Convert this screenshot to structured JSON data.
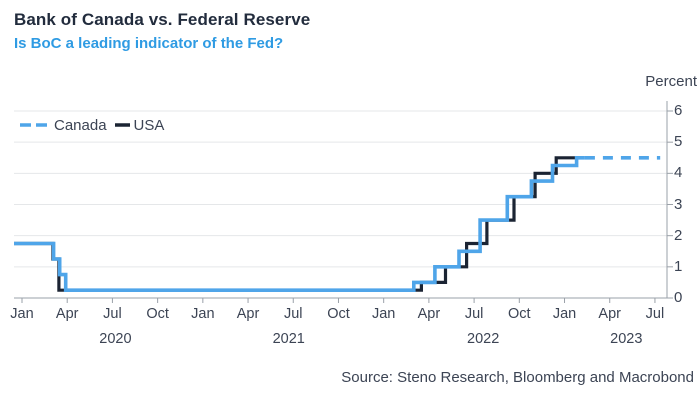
{
  "header": {
    "title": "Bank of Canada vs. Federal Reserve",
    "subtitle": "Is BoC a leading indicator of the Fed?"
  },
  "source": {
    "text": "Source: Steno Research, Bloomberg and Macrobond"
  },
  "colors": {
    "title": "#222C3D",
    "subtitle": "#2F9BE3",
    "text": "#3C4454",
    "grid": "#E5E7E9",
    "axis": "#9AA0A8",
    "canada": "#4FA5E9",
    "usa": "#1B2433"
  },
  "chart_data": {
    "type": "line",
    "style": "step",
    "title": "Bank of Canada vs. Federal Reserve",
    "subtitle": "Is BoC a leading indicator of the Fed?",
    "ylabel": "Percent",
    "ylim": [
      0,
      6
    ],
    "yticks": [
      0,
      1,
      2,
      3,
      4,
      5,
      6
    ],
    "grid": "horizontal",
    "legend_position": "top-left",
    "x_unit": "months since Jan 2020",
    "x_tick_months": [
      {
        "label": "Jan",
        "m": 0
      },
      {
        "label": "Apr",
        "m": 3
      },
      {
        "label": "Jul",
        "m": 6
      },
      {
        "label": "Oct",
        "m": 9
      },
      {
        "label": "Jan",
        "m": 12
      },
      {
        "label": "Apr",
        "m": 15
      },
      {
        "label": "Jul",
        "m": 18
      },
      {
        "label": "Oct",
        "m": 21
      },
      {
        "label": "Jan",
        "m": 24
      },
      {
        "label": "Apr",
        "m": 27
      },
      {
        "label": "Jul",
        "m": 30
      },
      {
        "label": "Oct",
        "m": 33
      },
      {
        "label": "Jan",
        "m": 36
      },
      {
        "label": "Apr",
        "m": 39
      },
      {
        "label": "Jul",
        "m": 42
      }
    ],
    "year_labels": [
      {
        "label": "2020",
        "m": 6.2
      },
      {
        "label": "2021",
        "m": 17.7
      },
      {
        "label": "2022",
        "m": 30.6
      },
      {
        "label": "2023",
        "m": 40.1
      }
    ],
    "series": [
      {
        "name": "USA",
        "color": "#1B2433",
        "line": "solid",
        "points": [
          [
            -0.53,
            1.75
          ],
          [
            2.05,
            1.75
          ],
          [
            2.05,
            1.25
          ],
          [
            2.45,
            1.25
          ],
          [
            2.45,
            0.25
          ],
          [
            26.5,
            0.25
          ],
          [
            26.5,
            0.5
          ],
          [
            28.1,
            0.5
          ],
          [
            28.1,
            1.0
          ],
          [
            29.5,
            1.0
          ],
          [
            29.5,
            1.75
          ],
          [
            30.85,
            1.75
          ],
          [
            30.85,
            2.5
          ],
          [
            32.65,
            2.5
          ],
          [
            32.65,
            3.25
          ],
          [
            34.05,
            3.25
          ],
          [
            34.05,
            4.0
          ],
          [
            35.45,
            4.0
          ],
          [
            35.45,
            4.5
          ],
          [
            37.0,
            4.5
          ]
        ]
      },
      {
        "name": "Canada",
        "color": "#4FA5E9",
        "line": "solid",
        "points": [
          [
            -0.53,
            1.75
          ],
          [
            2.1,
            1.75
          ],
          [
            2.1,
            1.25
          ],
          [
            2.5,
            1.25
          ],
          [
            2.5,
            0.75
          ],
          [
            2.9,
            0.75
          ],
          [
            2.9,
            0.25
          ],
          [
            26.0,
            0.25
          ],
          [
            26.0,
            0.5
          ],
          [
            27.4,
            0.5
          ],
          [
            27.4,
            1.0
          ],
          [
            29.0,
            1.0
          ],
          [
            29.0,
            1.5
          ],
          [
            30.4,
            1.5
          ],
          [
            30.4,
            2.5
          ],
          [
            32.2,
            2.5
          ],
          [
            32.2,
            3.25
          ],
          [
            33.8,
            3.25
          ],
          [
            33.8,
            3.75
          ],
          [
            35.2,
            3.75
          ],
          [
            35.2,
            4.25
          ],
          [
            36.8,
            4.25
          ],
          [
            36.8,
            4.5
          ],
          [
            37.35,
            4.5
          ]
        ]
      },
      {
        "name": "Canada (dashed extension)",
        "color": "#4FA5E9",
        "line": "dashed",
        "points": [
          [
            37.35,
            4.5
          ],
          [
            42.35,
            4.5
          ]
        ]
      }
    ],
    "legend": [
      {
        "label": "Canada",
        "color": "#4FA5E9",
        "swatch": "dashed"
      },
      {
        "label": "USA",
        "color": "#1B2433",
        "swatch": "solid"
      }
    ]
  }
}
